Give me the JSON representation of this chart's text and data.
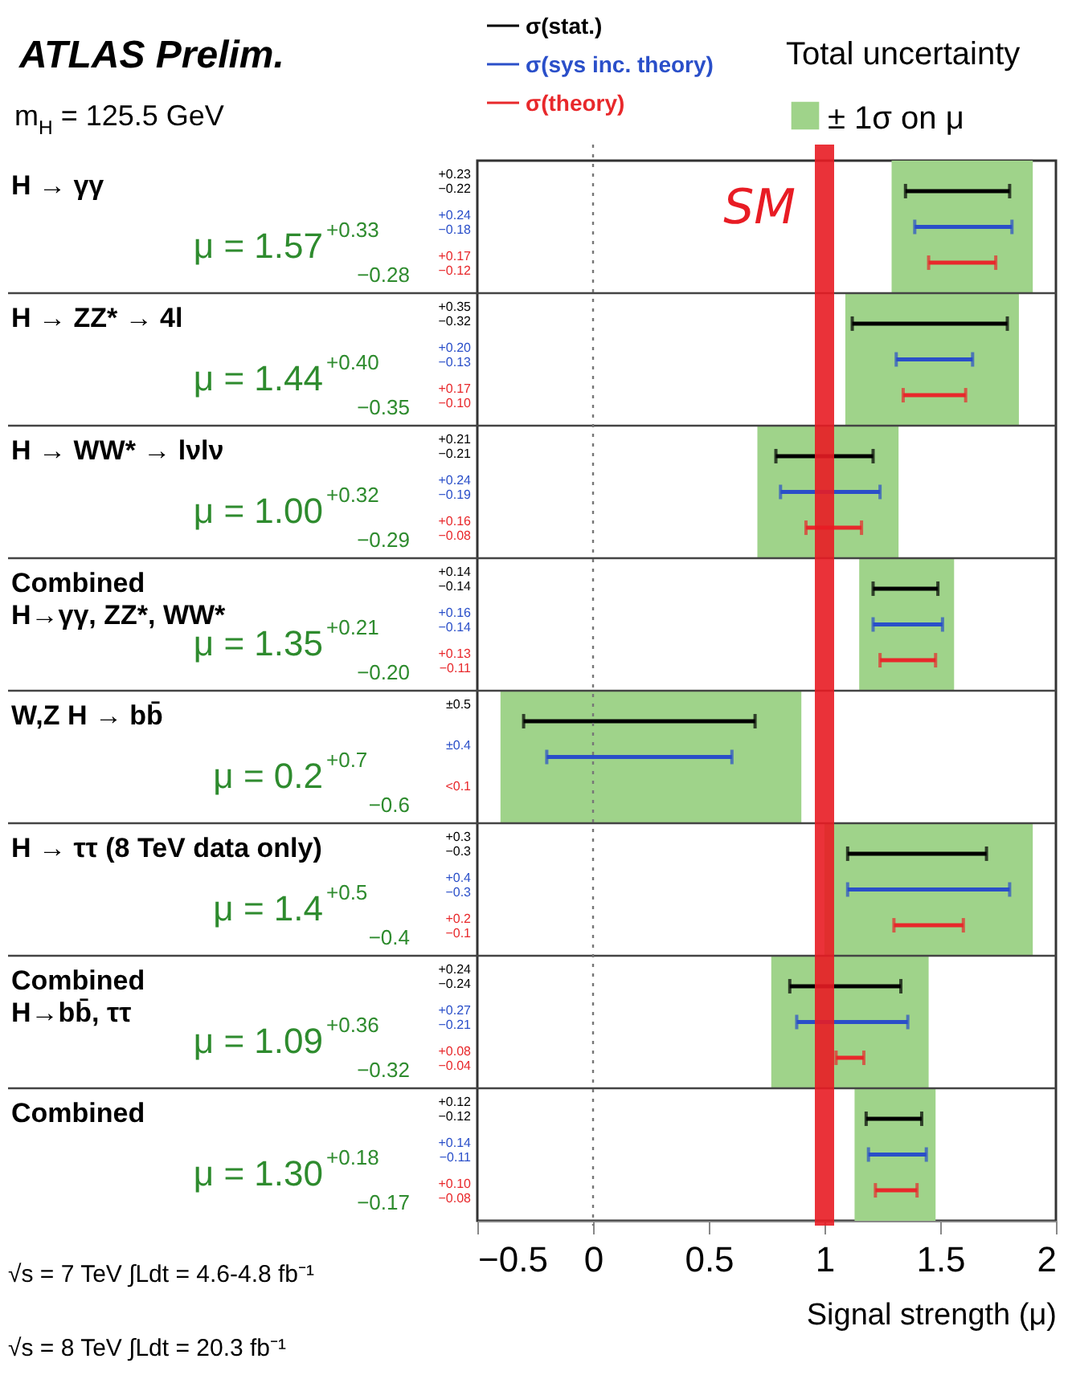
{
  "chart_data": {
    "type": "bar",
    "title": "ATLAS Prelim.",
    "subtitle": "m$_{H}$ = 125.5 GeV",
    "xlabel": "Signal strength (μ)",
    "legend_title": "Total uncertainty",
    "legend": "top",
    "orientation": "horizontal",
    "categories": [
      "H → γγ",
      "H → ZZ* → 4l",
      "H → WW* → lνlν",
      "Combined\nH→γγ, ZZ*, WW*",
      "W,Z H → bb̄",
      "H → ττ  (8 TeV data only)",
      "Combined\nH→bb̄, ττ",
      "Combined"
    ],
    "xlim": [
      -0.5,
      2
    ],
    "xticks": [
      -0.5,
      0,
      0.5,
      1,
      1.5,
      2
    ],
    "series": [
      {
        "name": "± 1σ on μ",
        "color": "#9fd38a",
        "base": [
          1.29,
          1.09,
          0.71,
          1.15,
          -0.4,
          1.0,
          0.77,
          1.13
        ],
        "values": [
          0.61,
          0.75,
          0.61,
          0.41,
          1.3,
          0.9,
          0.68,
          0.35
        ]
      },
      {
        "name": "σ(stat.)",
        "color": "#000000",
        "base": [
          1.35,
          1.12,
          0.79,
          1.21,
          -0.3,
          1.1,
          0.85,
          1.18
        ],
        "values": [
          0.45,
          0.67,
          0.42,
          0.28,
          1.0,
          0.6,
          0.48,
          0.24
        ]
      },
      {
        "name": "σ(sys inc. theory)",
        "color": "#2a4fc9",
        "base": [
          1.39,
          1.31,
          0.81,
          1.21,
          -0.2,
          1.1,
          0.88,
          1.19
        ],
        "values": [
          0.42,
          0.33,
          0.43,
          0.3,
          0.8,
          0.7,
          0.48,
          0.25
        ]
      },
      {
        "name": "σ(theory)",
        "color": "#e8282b",
        "base": [
          1.45,
          1.34,
          0.92,
          1.24,
          null,
          1.3,
          1.05,
          1.22
        ],
        "values": [
          0.29,
          0.27,
          0.24,
          0.24,
          null,
          0.3,
          0.12,
          0.18
        ]
      }
    ],
    "ref_lines": [
      {
        "axis": "x",
        "value": 0,
        "line_style": "dotted",
        "color": "#777777"
      },
      {
        "axis": "x",
        "value": 1,
        "label": "SM",
        "color": "#e81c24"
      }
    ],
    "annotations": [
      "μ = 1.57$^{+0.33}$$_{−0.28}$",
      "+0.23\n−0.22",
      "+0.24\n−0.18",
      "+0.17\n−0.12",
      "μ = 1.44$^{+0.40}$$_{−0.35}$",
      "+0.35\n−0.32",
      "+0.20\n−0.13",
      "+0.17\n−0.10",
      "μ = 1.00$^{+0.32}$$_{−0.29}$",
      "+0.21\n−0.21",
      "+0.24\n−0.19",
      "+0.16\n−0.08",
      "μ = 1.35$^{+0.21}$$_{−0.20}$",
      "+0.14\n−0.14",
      "+0.16\n−0.14",
      "+0.13\n−0.11",
      "μ = 0.2$^{+0.7}$$_{−0.6}$",
      "±0.5",
      "±0.4",
      "<0.1",
      "μ = 1.4$^{+0.5}$$_{−0.4}$",
      "+0.3\n−0.3",
      "+0.4\n−0.3",
      "+0.2\n−0.1",
      "μ = 1.09$^{+0.36}$$_{−0.32}$",
      "+0.24\n−0.24",
      "+0.27\n−0.21",
      "+0.08\n−0.04",
      "μ = 1.30$^{+0.18}$$_{−0.17}$",
      "+0.12\n−0.12",
      "+0.14\n−0.11",
      "+0.10\n−0.08",
      "√s = 7 TeV ∫Ldt = 4.6-4.8 fb⁻¹",
      "√s = 8 TeV ∫Ldt = 20.3 fb⁻¹"
    ]
  }
}
